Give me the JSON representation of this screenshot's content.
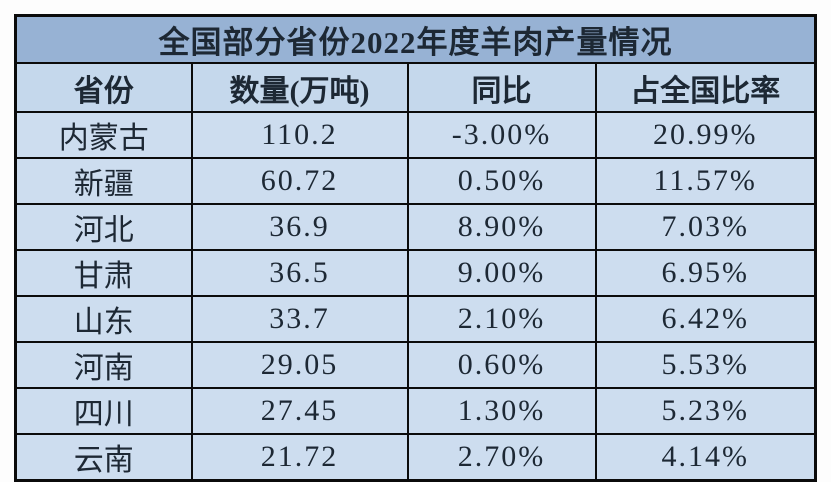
{
  "table": {
    "title": "全国部分省份2022年度羊肉产量情况",
    "headers": [
      "省份",
      "数量(万吨)",
      "同比",
      "占全国比率"
    ],
    "rows": [
      [
        "内蒙古",
        "110.2",
        "-3.00%",
        "20.99%"
      ],
      [
        "新疆",
        "60.72",
        "0.50%",
        "11.57%"
      ],
      [
        "河北",
        "36.9",
        "8.90%",
        "7.03%"
      ],
      [
        "甘肃",
        "36.5",
        "9.00%",
        "6.95%"
      ],
      [
        "山东",
        "33.7",
        "2.10%",
        "6.42%"
      ],
      [
        "河南",
        "29.05",
        "0.60%",
        "5.53%"
      ],
      [
        "四川",
        "27.45",
        "1.30%",
        "5.23%"
      ],
      [
        "云南",
        "21.72",
        "2.70%",
        "4.14%"
      ]
    ]
  },
  "colors": {
    "title_bg": "#97b2d4",
    "header_bg": "#c5d8ec",
    "row_bg": "#cdddef",
    "border": "#0b0b0b",
    "text": "#1d2834",
    "page_bg": "#fdfdfd"
  },
  "chart_data": {
    "type": "table",
    "title": "全国部分省份2022年度羊肉产量情况",
    "columns": [
      "省份",
      "数量(万吨)",
      "同比",
      "占全国比率"
    ],
    "rows": [
      {
        "省份": "内蒙古",
        "数量(万吨)": 110.2,
        "同比": "-3.00%",
        "占全国比率": "20.99%"
      },
      {
        "省份": "新疆",
        "数量(万吨)": 60.72,
        "同比": "0.50%",
        "占全国比率": "11.57%"
      },
      {
        "省份": "河北",
        "数量(万吨)": 36.9,
        "同比": "8.90%",
        "占全国比率": "7.03%"
      },
      {
        "省份": "甘肃",
        "数量(万吨)": 36.5,
        "同比": "9.00%",
        "占全国比率": "6.95%"
      },
      {
        "省份": "山东",
        "数量(万吨)": 33.7,
        "同比": "2.10%",
        "占全国比率": "6.42%"
      },
      {
        "省份": "河南",
        "数量(万吨)": 29.05,
        "同比": "0.60%",
        "占全国比率": "5.53%"
      },
      {
        "省份": "四川",
        "数量(万吨)": 27.45,
        "同比": "1.30%",
        "占全国比率": "5.23%"
      },
      {
        "省份": "云南",
        "数量(万吨)": 21.72,
        "同比": "2.70%",
        "占全国比率": "4.14%"
      }
    ]
  }
}
